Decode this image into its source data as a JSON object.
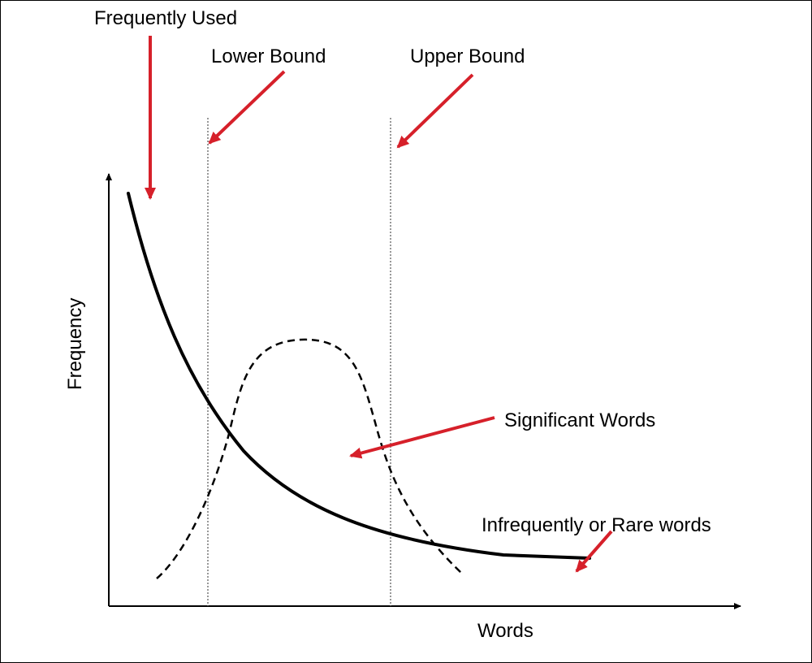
{
  "labels": {
    "frequently_used": "Frequently Used",
    "lower_bound": "Lower Bound",
    "upper_bound": "Upper Bound",
    "significant_words": "Significant Words",
    "rare_words": "Infrequently or Rare words",
    "y_axis": "Frequency",
    "x_axis": "Words"
  },
  "colors": {
    "arrow": "#d6202a",
    "curve": "#000000",
    "bound_line": "#555555"
  }
}
